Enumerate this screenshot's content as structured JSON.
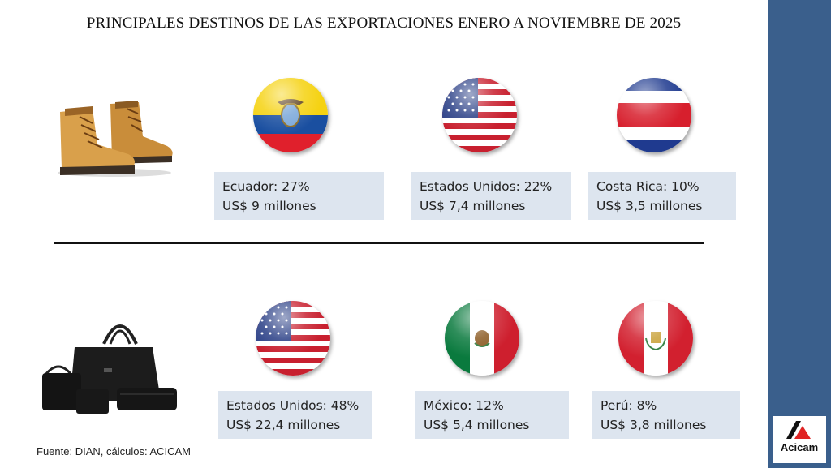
{
  "title": "PRINCIPALES DESTINOS DE LAS EXPORTACIONES ENERO A NOVIEMBRE DE 2025",
  "source": "Fuente: DIAN, cálculos: ACICAM",
  "logo_text": "Acicam",
  "rows": [
    {
      "product_icon": "boots-icon",
      "destinations": [
        {
          "country": "Ecuador",
          "line1": "Ecuador: 27%",
          "line2": "US$ 9 millones",
          "share_percent": 27,
          "value_musd": 9
        },
        {
          "country": "Estados Unidos",
          "line1": "Estados Unidos: 22%",
          "line2": "US$ 7,4 millones",
          "share_percent": 22,
          "value_musd": 7.4
        },
        {
          "country": "Costa Rica",
          "line1": "Costa Rica: 10%",
          "line2": "US$ 3,5 millones",
          "share_percent": 10,
          "value_musd": 3.5
        }
      ]
    },
    {
      "product_icon": "handbags-icon",
      "destinations": [
        {
          "country": "Estados Unidos",
          "line1": "Estados Unidos: 48%",
          "line2": "US$ 22,4 millones",
          "share_percent": 48,
          "value_musd": 22.4
        },
        {
          "country": "México",
          "line1": "México: 12%",
          "line2": "US$ 5,4 millones",
          "share_percent": 12,
          "value_musd": 5.4
        },
        {
          "country": "Perú",
          "line1": "Perú: 8%",
          "line2": "US$ 3,8 millones",
          "share_percent": 8,
          "value_musd": 3.8
        }
      ]
    }
  ],
  "colors": {
    "sidebar": "#3a5f8c",
    "box": "#dde5ef",
    "logo_red": "#e02424"
  }
}
